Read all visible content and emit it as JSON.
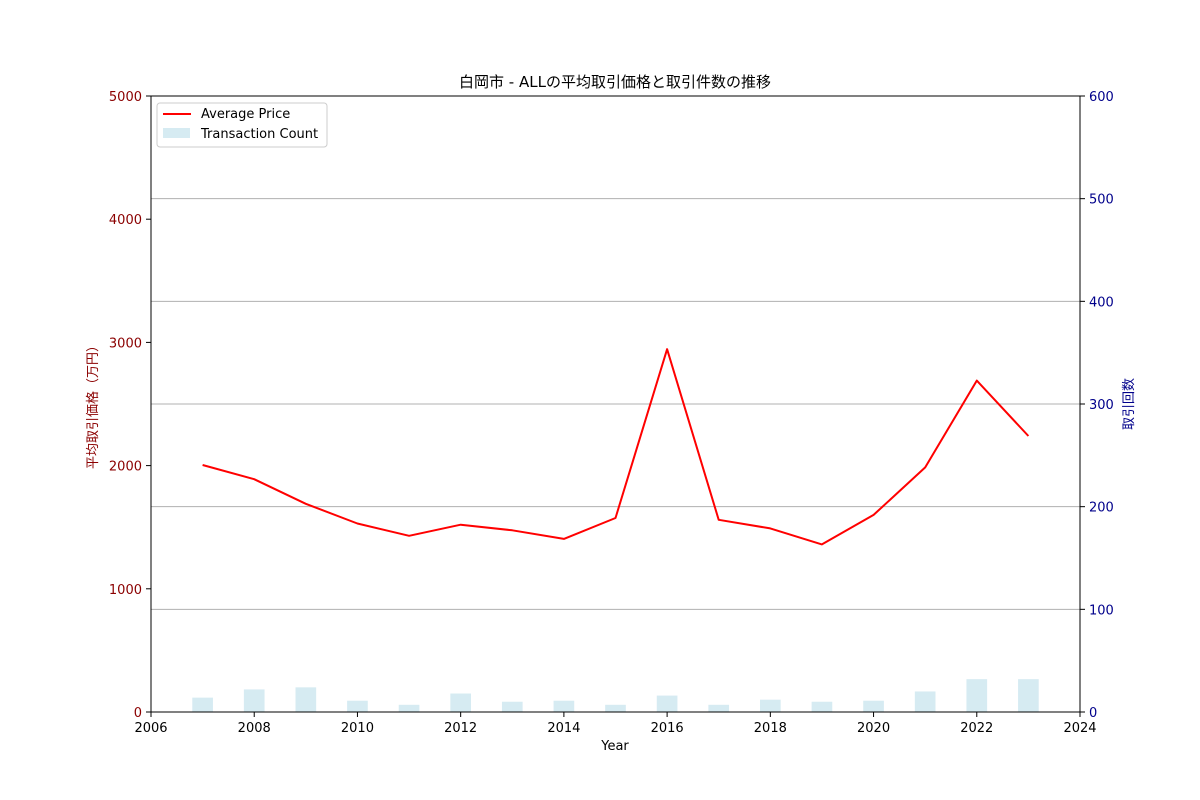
{
  "chart_data": {
    "type": "line",
    "title": "白岡市 - ALLの平均取引価格と取引件数の推移",
    "xlabel": "Year",
    "ylabel_left": "平均取引価格（万円）",
    "ylabel_right": "取引回数",
    "xlim": [
      2006,
      2024
    ],
    "ylim_left": [
      0,
      5000
    ],
    "ylim_right": [
      0,
      600
    ],
    "x_ticks": [
      2006,
      2008,
      2010,
      2012,
      2014,
      2016,
      2018,
      2020,
      2022,
      2024
    ],
    "y_left_ticks": [
      0,
      1000,
      2000,
      3000,
      4000,
      5000
    ],
    "y_right_ticks": [
      0,
      100,
      200,
      300,
      400,
      500,
      600
    ],
    "grid": "horizontal at right-axis ticks",
    "legend_position": "upper-left",
    "colors": {
      "price_line": "#ff0000",
      "count_bars": "#add8e6",
      "left_axis": "#8b0000",
      "right_axis": "#00008b"
    },
    "years": [
      2007,
      2008,
      2009,
      2010,
      2011,
      2012,
      2013,
      2014,
      2015,
      2016,
      2017,
      2018,
      2019,
      2020,
      2021,
      2022,
      2023
    ],
    "series": [
      {
        "name": "Average Price",
        "axis": "left",
        "kind": "line",
        "values": [
          2005,
          1890,
          1690,
          1530,
          1430,
          1520,
          1475,
          1405,
          1575,
          2945,
          1560,
          1490,
          1360,
          1600,
          1985,
          2690,
          2240
        ]
      },
      {
        "name": "Transaction Count",
        "axis": "right",
        "kind": "bar",
        "values": [
          14,
          22,
          24,
          11,
          7,
          18,
          10,
          11,
          7,
          16,
          7,
          12,
          10,
          11,
          20,
          32,
          32
        ]
      }
    ]
  }
}
